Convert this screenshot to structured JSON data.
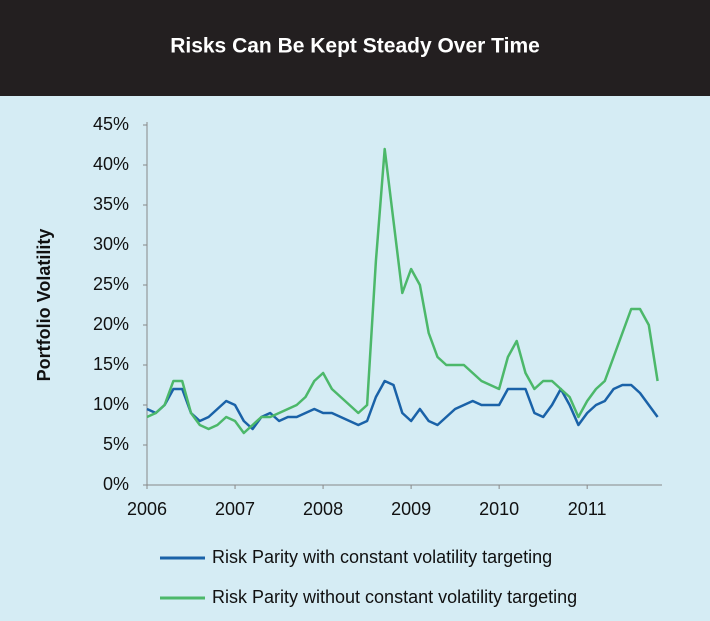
{
  "chart_data": {
    "type": "line",
    "title": "Risks Can Be Kept Steady Over Time",
    "ylabel": "Portfolio Volatility",
    "x": [
      2006.0,
      2006.1,
      2006.2,
      2006.3,
      2006.4,
      2006.5,
      2006.6,
      2006.7,
      2006.8,
      2006.9,
      2007.0,
      2007.1,
      2007.2,
      2007.3,
      2007.4,
      2007.5,
      2007.6,
      2007.7,
      2007.8,
      2007.9,
      2008.0,
      2008.1,
      2008.2,
      2008.3,
      2008.4,
      2008.5,
      2008.6,
      2008.7,
      2008.8,
      2008.9,
      2009.0,
      2009.1,
      2009.2,
      2009.3,
      2009.4,
      2009.5,
      2009.6,
      2009.7,
      2009.8,
      2009.9,
      2010.0,
      2010.1,
      2010.2,
      2010.3,
      2010.4,
      2010.5,
      2010.6,
      2010.7,
      2010.8,
      2010.9,
      2011.0,
      2011.1,
      2011.2,
      2011.3,
      2011.4,
      2011.5,
      2011.6,
      2011.7,
      2011.8
    ],
    "series": [
      {
        "name": "Risk Parity with constant volatility targeting",
        "color": "#1a62a8",
        "values": [
          9.5,
          9,
          10,
          12,
          12,
          9,
          8,
          8.5,
          9.5,
          10.5,
          10,
          8,
          7,
          8.5,
          9,
          8,
          8.5,
          8.5,
          9,
          9.5,
          9,
          9,
          8.5,
          8,
          7.5,
          8,
          11,
          13,
          12.5,
          9,
          8,
          9.5,
          8,
          7.5,
          8.5,
          9.5,
          10,
          10.5,
          10,
          10,
          10,
          12,
          12,
          12,
          9,
          8.5,
          10,
          12,
          10,
          7.5,
          9,
          10,
          10.5,
          12,
          12.5,
          12.5,
          11.5,
          10,
          8.5
        ]
      },
      {
        "name": "Risk Parity without constant volatility targeting",
        "color": "#4cb86a",
        "values": [
          8.5,
          9,
          10,
          13,
          13,
          9,
          7.5,
          7,
          7.5,
          8.5,
          8,
          6.5,
          7.5,
          8.5,
          8.5,
          9,
          9.5,
          10,
          11,
          13,
          14,
          12,
          11,
          10,
          9,
          10,
          28,
          42,
          33,
          24,
          27,
          25,
          19,
          16,
          15,
          15,
          15,
          14,
          13,
          12.5,
          12,
          16,
          18,
          14,
          12,
          13,
          13,
          12,
          11,
          8.5,
          10.5,
          12,
          13,
          16,
          19,
          22,
          22,
          20,
          13
        ]
      }
    ],
    "xlim": [
      2006,
      2011.85
    ],
    "xticks": [
      2006,
      2007,
      2008,
      2009,
      2010,
      2011
    ],
    "ylim": [
      0,
      45
    ],
    "yticks": [
      {
        "value": 0,
        "label": "0%"
      },
      {
        "value": 5,
        "label": "5%"
      },
      {
        "value": 10,
        "label": "10%"
      },
      {
        "value": 15,
        "label": "15%"
      },
      {
        "value": 20,
        "label": "20%"
      },
      {
        "value": 25,
        "label": "25%"
      },
      {
        "value": 30,
        "label": "30%"
      },
      {
        "value": 35,
        "label": "35%"
      },
      {
        "value": 40,
        "label": "40%"
      },
      {
        "value": 45,
        "label": "45%"
      }
    ]
  }
}
